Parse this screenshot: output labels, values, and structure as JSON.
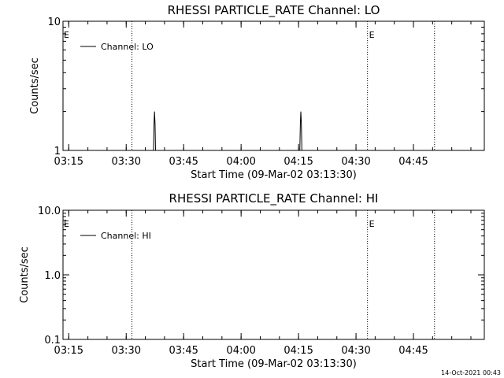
{
  "chart_data": [
    {
      "type": "line",
      "title": "RHESSI PARTICLE_RATE Channel: LO",
      "xlabel": "Start Time (09-Mar-02 03:13:30)",
      "ylabel": "Counts/sec",
      "y_scale": "log",
      "ylim": [
        1,
        10
      ],
      "yticks": [
        "1",
        "10"
      ],
      "xlim": [
        "03:13:30",
        "05:03:30"
      ],
      "xticks": [
        "03:15",
        "03:30",
        "03:45",
        "04:00",
        "04:15",
        "04:30",
        "04:45"
      ],
      "legend": {
        "label": "Channel: LO",
        "placement": "top-left"
      },
      "event_markers": [
        {
          "time": "03:31:30",
          "label": ""
        },
        {
          "time": "04:33:00",
          "label": "E"
        },
        {
          "time": "04:50:30",
          "label": ""
        }
      ],
      "edge_labels": [
        "E"
      ],
      "series": [
        {
          "name": "Channel: LO",
          "points": [
            [
              "03:37:08",
              1
            ],
            [
              "03:37:16",
              1.6
            ],
            [
              "03:37:24",
              2.0
            ],
            [
              "03:37:32",
              1.6
            ],
            [
              "03:37:40",
              1
            ],
            [
              "04:15:20",
              1
            ],
            [
              "04:15:28",
              1.6
            ],
            [
              "04:15:36",
              2.0
            ],
            [
              "04:15:44",
              1.6
            ],
            [
              "04:15:52",
              1
            ]
          ]
        }
      ]
    },
    {
      "type": "line",
      "title": "RHESSI PARTICLE_RATE Channel: HI",
      "xlabel": "Start Time (09-Mar-02 03:13:30)",
      "ylabel": "Counts/sec",
      "y_scale": "log",
      "ylim": [
        0.1,
        10
      ],
      "yticks": [
        "0.1",
        "1.0",
        "10.0"
      ],
      "xlim": [
        "03:13:30",
        "05:03:30"
      ],
      "xticks": [
        "03:15",
        "03:30",
        "03:45",
        "04:00",
        "04:15",
        "04:30",
        "04:45"
      ],
      "legend": {
        "label": "Channel: HI",
        "placement": "top-left"
      },
      "event_markers": [
        {
          "time": "03:31:30",
          "label": ""
        },
        {
          "time": "04:33:00",
          "label": "E"
        },
        {
          "time": "04:50:30",
          "label": ""
        }
      ],
      "edge_labels": [
        "E"
      ],
      "series": [
        {
          "name": "Channel: HI",
          "points": []
        }
      ]
    }
  ],
  "footer": {
    "timestamp": "14-Oct-2021 00:43"
  }
}
